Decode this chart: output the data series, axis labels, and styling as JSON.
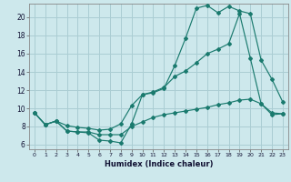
{
  "xlabel": "Humidex (Indice chaleur)",
  "bg_color": "#cde8ec",
  "grid_color": "#aacdd3",
  "line_color": "#1a7a6e",
  "xlim": [
    -0.5,
    23.5
  ],
  "ylim": [
    5.5,
    21.5
  ],
  "xticks": [
    0,
    1,
    2,
    3,
    4,
    5,
    6,
    7,
    8,
    9,
    10,
    11,
    12,
    13,
    14,
    15,
    16,
    17,
    18,
    19,
    20,
    21,
    22,
    23
  ],
  "yticks": [
    6,
    8,
    10,
    12,
    14,
    16,
    18,
    20
  ],
  "line1_x": [
    0,
    1,
    2,
    3,
    4,
    5,
    6,
    7,
    8,
    9,
    10,
    11,
    12,
    13,
    14,
    15,
    16,
    17,
    18,
    19,
    20,
    21,
    22,
    23
  ],
  "line1_y": [
    9.5,
    8.2,
    8.6,
    7.5,
    7.4,
    7.3,
    6.5,
    6.4,
    6.2,
    8.3,
    11.5,
    11.7,
    12.2,
    14.7,
    17.7,
    21.0,
    21.3,
    20.5,
    21.2,
    20.7,
    20.4,
    15.3,
    13.2,
    10.7
  ],
  "line2_x": [
    0,
    1,
    2,
    3,
    4,
    5,
    6,
    7,
    8,
    9,
    10,
    11,
    12,
    13,
    14,
    15,
    16,
    17,
    18,
    19,
    20,
    21,
    22,
    23
  ],
  "line2_y": [
    9.5,
    8.2,
    8.6,
    8.1,
    7.9,
    7.8,
    7.6,
    7.7,
    8.3,
    10.3,
    11.5,
    11.8,
    12.3,
    13.5,
    14.1,
    15.0,
    16.0,
    16.5,
    17.1,
    20.4,
    15.5,
    10.5,
    9.3,
    9.4
  ],
  "line3_x": [
    0,
    1,
    2,
    3,
    4,
    5,
    6,
    7,
    8,
    9,
    10,
    11,
    12,
    13,
    14,
    15,
    16,
    17,
    18,
    19,
    20,
    21,
    22,
    23
  ],
  "line3_y": [
    9.5,
    8.2,
    8.6,
    7.5,
    7.4,
    7.4,
    7.1,
    7.1,
    7.1,
    8.0,
    8.5,
    9.0,
    9.3,
    9.5,
    9.7,
    9.9,
    10.1,
    10.4,
    10.6,
    10.9,
    11.0,
    10.5,
    9.5,
    9.4
  ]
}
